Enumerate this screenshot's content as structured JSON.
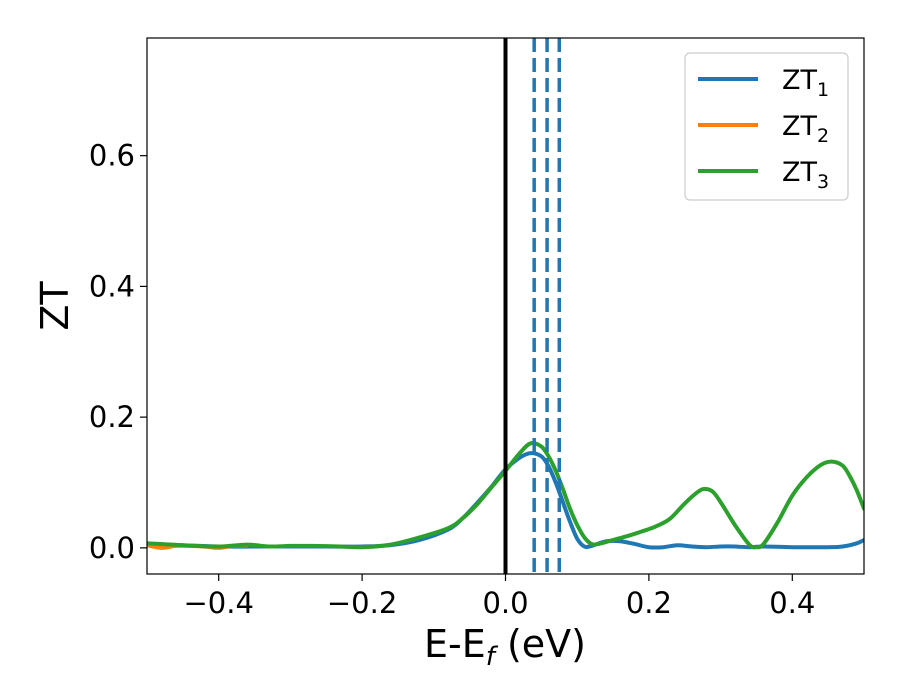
{
  "chart_data": {
    "type": "line",
    "xlabel": "E-E",
    "xlabel_sub": "f",
    "xlabel_unit": " (eV)",
    "ylabel": "ZT",
    "xlim": [
      -0.5,
      0.5
    ],
    "ylim": [
      -0.04,
      0.78
    ],
    "grid": false,
    "legend_position": "top-right",
    "x_ticks": [
      -0.4,
      -0.2,
      0.0,
      0.2,
      0.4
    ],
    "x_tick_labels": [
      "−0.4",
      "−0.2",
      "0.0",
      "0.2",
      "0.4"
    ],
    "y_ticks": [
      0.0,
      0.2,
      0.4,
      0.6
    ],
    "y_tick_labels": [
      "0.0",
      "0.2",
      "0.4",
      "0.6"
    ],
    "vlines": [
      {
        "x": 0.0,
        "style": "solid",
        "color": "#000000"
      },
      {
        "x": 0.04,
        "style": "dashed",
        "color": "#1f77b4"
      },
      {
        "x": 0.058,
        "style": "dashed",
        "color": "#1f77b4"
      },
      {
        "x": 0.075,
        "style": "dashed",
        "color": "#1f77b4"
      }
    ],
    "series": [
      {
        "name": "ZT",
        "sub": "1",
        "color": "#1f77b4",
        "points": [
          [
            -0.5,
            0.005
          ],
          [
            -0.45,
            0.004
          ],
          [
            -0.4,
            0.002
          ],
          [
            -0.35,
            0.002
          ],
          [
            -0.3,
            0.002
          ],
          [
            -0.25,
            0.002
          ],
          [
            -0.2,
            0.002
          ],
          [
            -0.16,
            0.004
          ],
          [
            -0.12,
            0.012
          ],
          [
            -0.08,
            0.028
          ],
          [
            -0.06,
            0.045
          ],
          [
            -0.04,
            0.068
          ],
          [
            -0.02,
            0.093
          ],
          [
            0.0,
            0.12
          ],
          [
            0.02,
            0.138
          ],
          [
            0.035,
            0.145
          ],
          [
            0.05,
            0.14
          ],
          [
            0.06,
            0.125
          ],
          [
            0.07,
            0.1
          ],
          [
            0.08,
            0.07
          ],
          [
            0.09,
            0.04
          ],
          [
            0.1,
            0.014
          ],
          [
            0.11,
            0.002
          ],
          [
            0.12,
            0.003
          ],
          [
            0.14,
            0.01
          ],
          [
            0.16,
            0.01
          ],
          [
            0.18,
            0.006
          ],
          [
            0.2,
            0.001
          ],
          [
            0.22,
            0.001
          ],
          [
            0.24,
            0.004
          ],
          [
            0.26,
            0.002
          ],
          [
            0.28,
            0.001
          ],
          [
            0.3,
            0.002
          ],
          [
            0.32,
            0.002
          ],
          [
            0.34,
            0.001
          ],
          [
            0.36,
            0.002
          ],
          [
            0.4,
            0.001
          ],
          [
            0.45,
            0.001
          ],
          [
            0.47,
            0.002
          ],
          [
            0.49,
            0.007
          ],
          [
            0.5,
            0.012
          ]
        ]
      },
      {
        "name": "ZT",
        "sub": "2",
        "color": "#ff7f0e",
        "points": [
          [
            -0.5,
            0.004
          ],
          [
            -0.48,
            0.0
          ],
          [
            -0.46,
            0.003
          ],
          [
            -0.44,
            0.003
          ],
          [
            -0.42,
            0.002
          ],
          [
            -0.4,
            0.0
          ],
          [
            -0.38,
            0.003
          ],
          [
            -0.36,
            0.004
          ]
        ]
      },
      {
        "name": "ZT",
        "sub": "3",
        "color": "#2ca02c",
        "points": [
          [
            -0.5,
            0.007
          ],
          [
            -0.45,
            0.004
          ],
          [
            -0.4,
            0.002
          ],
          [
            -0.36,
            0.005
          ],
          [
            -0.33,
            0.002
          ],
          [
            -0.3,
            0.003
          ],
          [
            -0.27,
            0.003
          ],
          [
            -0.23,
            0.002
          ],
          [
            -0.2,
            0.001
          ],
          [
            -0.16,
            0.005
          ],
          [
            -0.12,
            0.016
          ],
          [
            -0.08,
            0.03
          ],
          [
            -0.06,
            0.045
          ],
          [
            -0.04,
            0.066
          ],
          [
            -0.02,
            0.092
          ],
          [
            0.0,
            0.118
          ],
          [
            0.02,
            0.145
          ],
          [
            0.035,
            0.16
          ],
          [
            0.05,
            0.155
          ],
          [
            0.06,
            0.14
          ],
          [
            0.07,
            0.118
          ],
          [
            0.08,
            0.09
          ],
          [
            0.09,
            0.06
          ],
          [
            0.1,
            0.035
          ],
          [
            0.11,
            0.016
          ],
          [
            0.12,
            0.006
          ],
          [
            0.13,
            0.006
          ],
          [
            0.15,
            0.012
          ],
          [
            0.17,
            0.018
          ],
          [
            0.19,
            0.025
          ],
          [
            0.21,
            0.033
          ],
          [
            0.23,
            0.045
          ],
          [
            0.25,
            0.068
          ],
          [
            0.27,
            0.087
          ],
          [
            0.28,
            0.09
          ],
          [
            0.29,
            0.085
          ],
          [
            0.3,
            0.07
          ],
          [
            0.32,
            0.035
          ],
          [
            0.34,
            0.005
          ],
          [
            0.35,
            0.001
          ],
          [
            0.36,
            0.006
          ],
          [
            0.38,
            0.04
          ],
          [
            0.4,
            0.08
          ],
          [
            0.42,
            0.108
          ],
          [
            0.44,
            0.127
          ],
          [
            0.455,
            0.132
          ],
          [
            0.47,
            0.126
          ],
          [
            0.48,
            0.11
          ],
          [
            0.49,
            0.088
          ],
          [
            0.5,
            0.06
          ]
        ]
      }
    ]
  }
}
